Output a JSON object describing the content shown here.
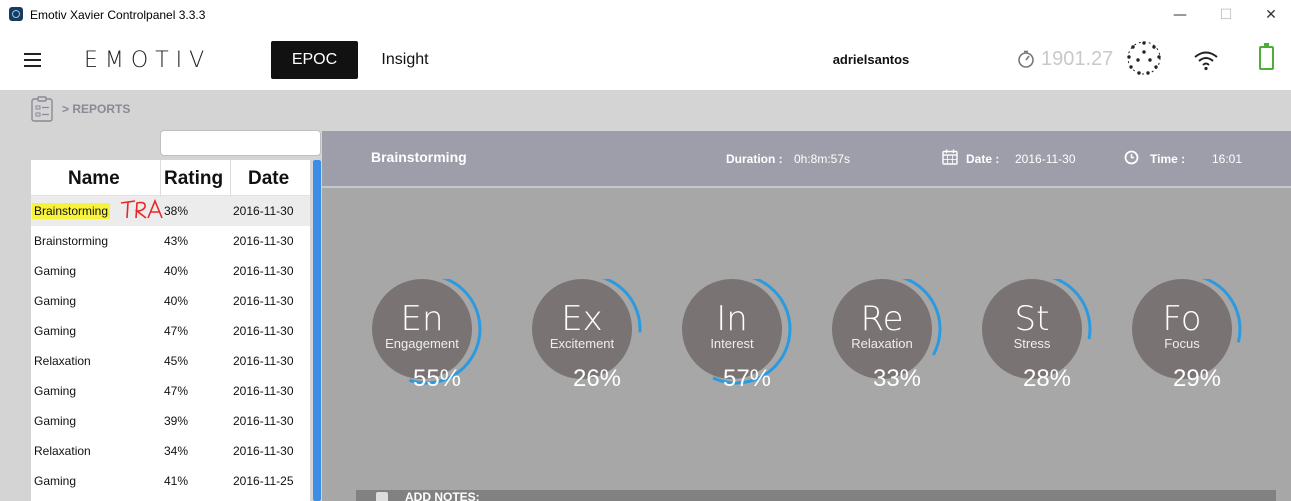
{
  "window": {
    "title": "Emotiv Xavier Controlpanel 3.3.3"
  },
  "header": {
    "logo": "EMOTIV",
    "tabs": [
      {
        "label": "EPOC",
        "active": true
      },
      {
        "label": "Insight",
        "active": false
      }
    ],
    "username": "adrielsantos",
    "timer": "1901.27"
  },
  "breadcrumb": {
    "text": "> REPORTS"
  },
  "reports_table": {
    "columns": [
      "Name",
      "Rating",
      "Date"
    ],
    "rows": [
      {
        "name": "Brainstorming",
        "rating": "38%",
        "date": "2016-11-30",
        "selected": true
      },
      {
        "name": "Brainstorming",
        "rating": "43%",
        "date": "2016-11-30"
      },
      {
        "name": "Gaming",
        "rating": "40%",
        "date": "2016-11-30"
      },
      {
        "name": "Gaming",
        "rating": "40%",
        "date": "2016-11-30"
      },
      {
        "name": "Gaming",
        "rating": "47%",
        "date": "2016-11-30"
      },
      {
        "name": "Relaxation",
        "rating": "45%",
        "date": "2016-11-30"
      },
      {
        "name": "Gaming",
        "rating": "47%",
        "date": "2016-11-30"
      },
      {
        "name": "Gaming",
        "rating": "39%",
        "date": "2016-11-30"
      },
      {
        "name": "Relaxation",
        "rating": "34%",
        "date": "2016-11-30"
      },
      {
        "name": "Gaming",
        "rating": "41%",
        "date": "2016-11-25"
      }
    ],
    "annotation": "TRA"
  },
  "report": {
    "title": "Brainstorming",
    "duration_label": "Duration :",
    "duration": "0h:8m:57s",
    "date_label": "Date :",
    "date": "2016-11-30",
    "time_label": "Time :",
    "time": "16:01"
  },
  "metrics": [
    {
      "abbr": "En",
      "name": "Engagement",
      "value": "55%",
      "fraction": 0.55
    },
    {
      "abbr": "Ex",
      "name": "Excitement",
      "value": "26%",
      "fraction": 0.26
    },
    {
      "abbr": "In",
      "name": "Interest",
      "value": "57%",
      "fraction": 0.57
    },
    {
      "abbr": "Re",
      "name": "Relaxation",
      "value": "33%",
      "fraction": 0.33
    },
    {
      "abbr": "St",
      "name": "Stress",
      "value": "28%",
      "fraction": 0.28
    },
    {
      "abbr": "Fo",
      "name": "Focus",
      "value": "29%",
      "fraction": 0.29
    }
  ],
  "notes": {
    "label": "ADD NOTES:"
  },
  "colors": {
    "accent": "#2a9be0",
    "gauge_fill": "#7a7373",
    "panel_bg": "#a7a7a7",
    "header_band": "#9d9ea9",
    "highlight": "#f7f23a"
  }
}
